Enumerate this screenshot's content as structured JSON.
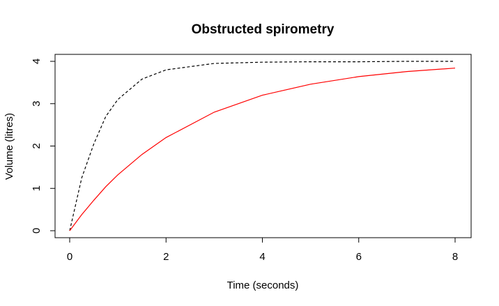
{
  "chart_data": {
    "type": "line",
    "title": "Obstructed spirometry",
    "xlabel": "Time (seconds)",
    "ylabel": "Volume (litres)",
    "xlim": [
      0,
      8
    ],
    "ylim": [
      0,
      4
    ],
    "x_ticks": [
      "0",
      "2",
      "4",
      "6",
      "8"
    ],
    "y_ticks": [
      "0",
      "1",
      "2",
      "3",
      "4"
    ],
    "grid": false,
    "legend": "none",
    "series": [
      {
        "color": "#000000",
        "linestyle": "dashed",
        "x": [
          0,
          0.25,
          0.5,
          0.75,
          1,
          1.5,
          2,
          3,
          4,
          5,
          6,
          7,
          8
        ],
        "y": [
          0,
          1.25,
          2.05,
          2.7,
          3.1,
          3.58,
          3.8,
          3.95,
          3.98,
          3.99,
          3.99,
          4.0,
          4.0
        ]
      },
      {
        "color": "#ff0000",
        "linestyle": "solid",
        "x": [
          0,
          0.25,
          0.5,
          0.75,
          1,
          1.5,
          2,
          3,
          4,
          5,
          6,
          7,
          8
        ],
        "y": [
          0,
          0.38,
          0.72,
          1.04,
          1.32,
          1.8,
          2.2,
          2.8,
          3.2,
          3.46,
          3.64,
          3.76,
          3.84
        ]
      }
    ]
  }
}
